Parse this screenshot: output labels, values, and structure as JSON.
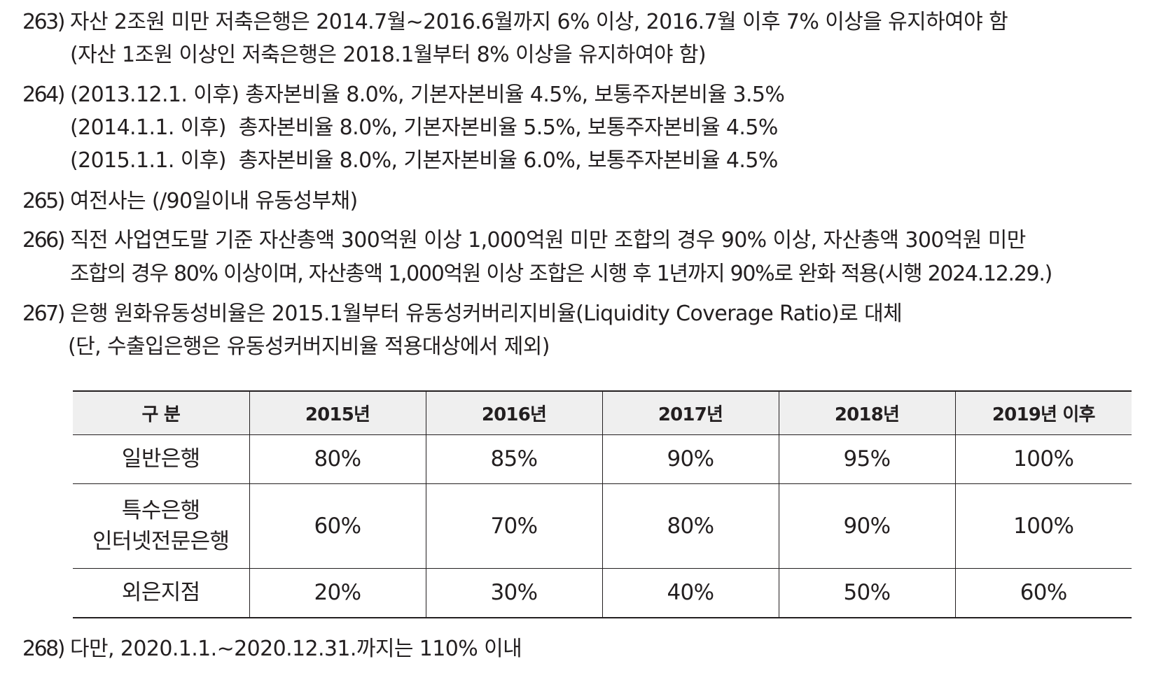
{
  "footnotes": [
    {
      "number": "263)",
      "lines": [
        "자산 2조원 미만 저축은행은 2014.7월∼2016.6월까지 6% 이상, 2016.7월 이후 7% 이상을 유지하여야 함",
        "(자산 1조원 이상인 저축은행은 2018.1월부터 8% 이상을 유지하여야 함)"
      ]
    },
    {
      "number": "264)",
      "lines": [
        "(2013.12.1. 이후) 총자본비율 8.0%, 기본자본비율 4.5%, 보통주자본비율 3.5%",
        "(2014.1.1. 이후)  총자본비율 8.0%, 기본자본비율 5.5%, 보통주자본비율 4.5%",
        "(2015.1.1. 이후)  총자본비율 8.0%, 기본자본비율 6.0%, 보통주자본비율 4.5%"
      ]
    },
    {
      "number": "265)",
      "lines": [
        "여전사는 (/90일이내 유동성부채)"
      ]
    },
    {
      "number": "266)",
      "lines": [
        "직전 사업연도말 기준 자산총액 300억원 이상 1,000억원 미만 조합의 경우 90% 이상, 자산총액 300억원 미만",
        "조합의 경우 80% 이상이며, 자산총액 1,000억원 이상 조합은 시행 후 1년까지 90%로 완화 적용(시행 2024.12.29.)"
      ]
    },
    {
      "number": "267)",
      "lines": [
        "은행 원화유동성비율은 2015.1월부터 유동성커버리지비율(Liquidity Coverage Ratio)로 대체",
        "(단, 수출입은행은 유동성커버지비율 적용대상에서 제외)"
      ]
    },
    {
      "number": "268)",
      "lines": [
        "다만, 2020.1.1.∼2020.12.31.까지는 110% 이내"
      ]
    }
  ],
  "table": {
    "headers": [
      "구 분",
      "2015년",
      "2016년",
      "2017년",
      "2018년",
      "2019년 이후"
    ],
    "rows": [
      {
        "label_lines": [
          "일반은행"
        ],
        "values": [
          "80%",
          "85%",
          "90%",
          "95%",
          "100%"
        ]
      },
      {
        "label_lines": [
          "특수은행",
          "인터넷전문은행"
        ],
        "values": [
          "60%",
          "70%",
          "80%",
          "90%",
          "100%"
        ]
      },
      {
        "label_lines": [
          "외은지점"
        ],
        "values": [
          "20%",
          "30%",
          "40%",
          "50%",
          "60%"
        ]
      }
    ]
  }
}
